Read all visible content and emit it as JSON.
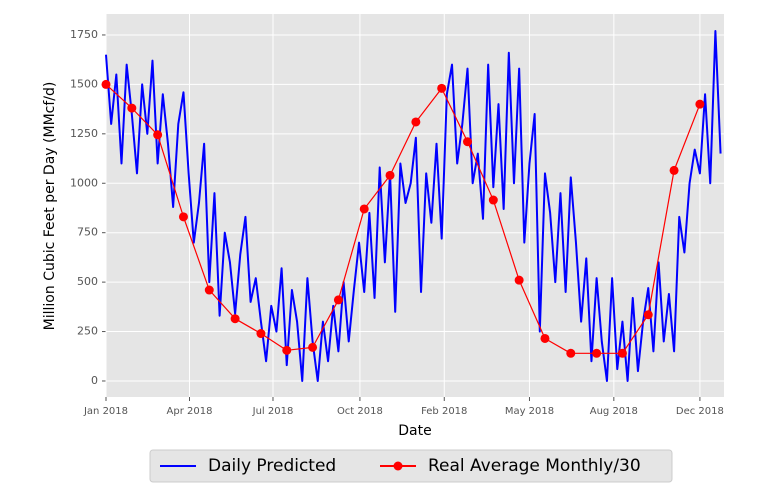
{
  "chart_data": {
    "type": "line",
    "xlabel": "Date",
    "ylabel": "Million Cubic Feet per Day (MMcf/d)",
    "xlim": [
      0,
      718
    ],
    "ylim": [
      -81,
      1856
    ],
    "xticks": [
      {
        "value": 0,
        "label": "Jan 2018"
      },
      {
        "value": 97,
        "label": "Apr 2018"
      },
      {
        "value": 194,
        "label": "Jul 2018"
      },
      {
        "value": 295,
        "label": "Oct 2018"
      },
      {
        "value": 393,
        "label": "Feb 2018"
      },
      {
        "value": 492,
        "label": "May 2018"
      },
      {
        "value": 590,
        "label": "Aug 2018"
      },
      {
        "value": 690,
        "label": "Dec 2018"
      }
    ],
    "yticks": [
      0,
      250,
      500,
      750,
      1000,
      {
        "value": 1250,
        "label": "1250"
      },
      1500,
      1750
    ],
    "grid": true,
    "legend": "bottom",
    "series": [
      {
        "name": "Daily Predicted",
        "color": "#0000ff",
        "marker": false,
        "x": [
          0,
          6,
          12,
          18,
          24,
          30,
          36,
          42,
          48,
          54,
          60,
          66,
          72,
          78,
          84,
          90,
          96,
          102,
          108,
          114,
          120,
          126,
          132,
          138,
          144,
          150,
          156,
          162,
          168,
          174,
          180,
          186,
          192,
          198,
          204,
          210,
          216,
          222,
          228,
          234,
          240,
          246,
          252,
          258,
          264,
          270,
          276,
          282,
          288,
          294,
          300,
          306,
          312,
          318,
          324,
          330,
          336,
          342,
          348,
          354,
          360,
          366,
          372,
          378,
          384,
          390,
          396,
          402,
          408,
          414,
          420,
          426,
          432,
          438,
          444,
          450,
          456,
          462,
          468,
          474,
          480,
          486,
          492,
          498,
          504,
          510,
          516,
          522,
          528,
          534,
          540,
          546,
          552,
          558,
          564,
          570,
          576,
          582,
          588,
          594,
          600,
          606,
          612,
          618,
          624,
          630,
          636,
          642,
          648,
          654,
          660,
          666,
          672,
          678,
          684,
          690,
          696,
          702,
          708,
          714
        ],
        "values": [
          1650,
          1300,
          1550,
          1100,
          1600,
          1350,
          1050,
          1500,
          1250,
          1620,
          1100,
          1450,
          1200,
          880,
          1300,
          1460,
          1050,
          700,
          900,
          1200,
          500,
          950,
          330,
          750,
          600,
          340,
          640,
          830,
          400,
          520,
          300,
          100,
          380,
          250,
          570,
          80,
          460,
          300,
          0,
          520,
          200,
          0,
          300,
          100,
          380,
          150,
          500,
          200,
          460,
          700,
          450,
          850,
          420,
          1080,
          600,
          1050,
          350,
          1100,
          900,
          1000,
          1230,
          450,
          1050,
          800,
          1200,
          720,
          1450,
          1600,
          1100,
          1300,
          1580,
          1000,
          1150,
          820,
          1600,
          980,
          1400,
          870,
          1660,
          1000,
          1580,
          700,
          1100,
          1350,
          250,
          1050,
          850,
          500,
          950,
          450,
          1030,
          700,
          300,
          620,
          100,
          520,
          200,
          0,
          520,
          60,
          300,
          0,
          420,
          50,
          300,
          470,
          150,
          600,
          200,
          440,
          150,
          830,
          650,
          1000,
          1170,
          1050,
          1450,
          1000,
          1770,
          1150
        ]
      },
      {
        "name": "Real Average Monthly/30",
        "color": "#ff0000",
        "marker": true,
        "x": [
          0,
          30,
          60,
          90,
          120,
          150,
          180,
          210,
          240,
          270,
          300,
          330,
          360,
          390,
          420,
          450,
          480,
          510,
          540,
          570,
          600,
          630,
          660,
          690
        ],
        "values": [
          1500,
          1380,
          1245,
          830,
          460,
          315,
          240,
          155,
          170,
          410,
          870,
          1040,
          1310,
          1480,
          1210,
          915,
          510,
          215,
          140,
          140,
          140,
          335,
          1065,
          1400
        ]
      }
    ]
  }
}
